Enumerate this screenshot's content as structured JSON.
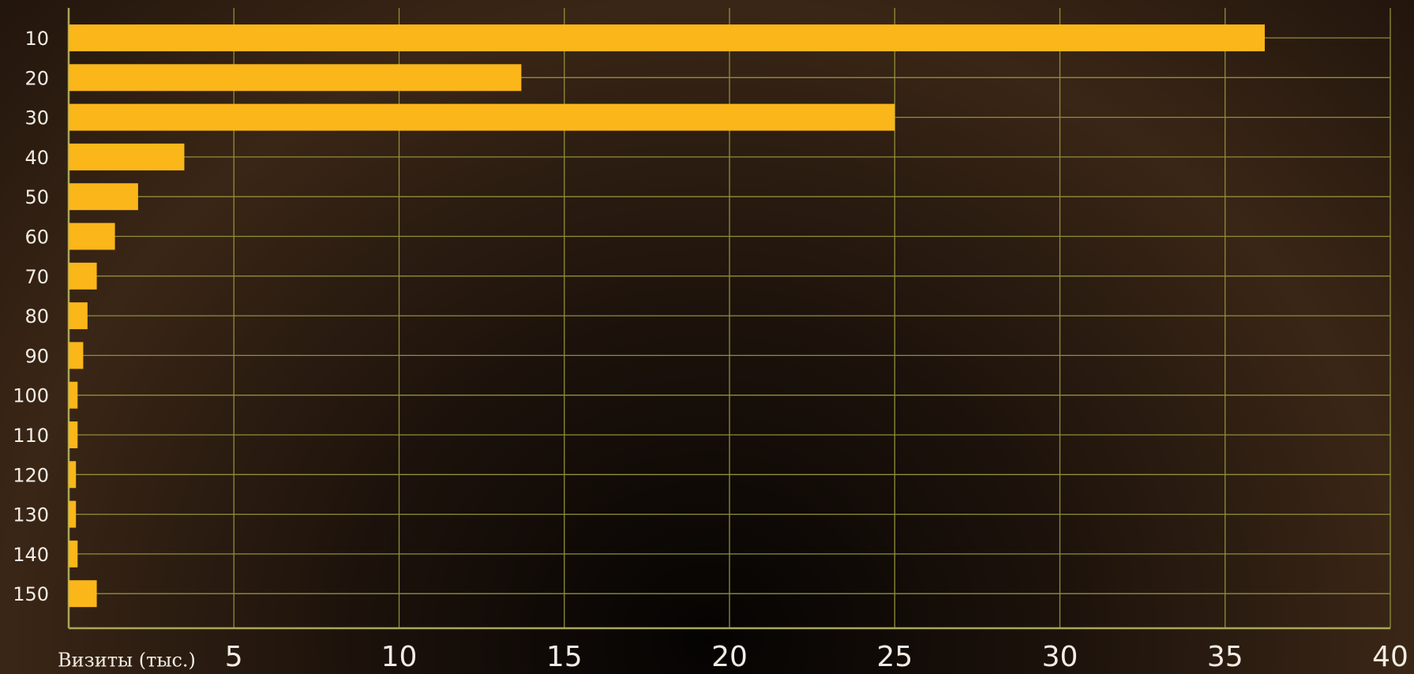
{
  "chart_data": {
    "type": "barh",
    "xlabel": "Визиты (тыс.)",
    "categories": [
      "10",
      "20",
      "30",
      "40",
      "50",
      "60",
      "70",
      "80",
      "90",
      "100",
      "110",
      "120",
      "130",
      "140",
      "150"
    ],
    "values": [
      36.2,
      13.7,
      25,
      3.5,
      2.1,
      1.4,
      0.85,
      0.57,
      0.44,
      0.27,
      0.27,
      0.22,
      0.22,
      0.27,
      0.85
    ],
    "color": "#fbb61a",
    "xlim": [
      0,
      40
    ],
    "xticks": [
      5,
      10,
      15,
      20,
      25,
      30,
      35,
      40
    ],
    "grid": true
  }
}
